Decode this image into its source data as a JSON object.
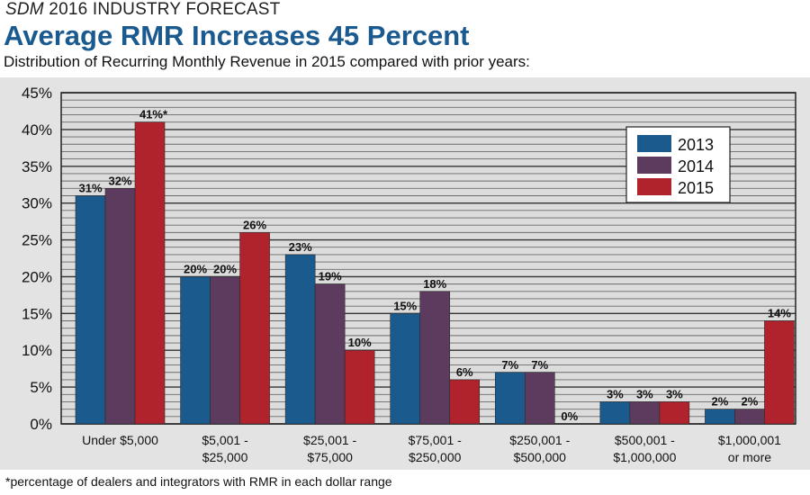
{
  "header": {
    "kicker_brand": "SDM",
    "kicker_rest": " 2016 INDUSTRY FORECAST",
    "title": "Average RMR Increases 45 Percent",
    "subtitle": "Distribution of Recurring Monthly Revenue in 2015 compared with prior years:"
  },
  "footnote": "*percentage of dealers and integrators with RMR in each dollar range",
  "chart_data": {
    "type": "bar",
    "categories": [
      [
        "Under $5,000"
      ],
      [
        "$5,001 -",
        "$25,000"
      ],
      [
        "$25,001 -",
        "$75,000"
      ],
      [
        "$75,001 -",
        "$250,000"
      ],
      [
        "$250,001 -",
        "$500,000"
      ],
      [
        "$500,001 -",
        "$1,000,000"
      ],
      [
        "$1,000,001",
        "or more"
      ]
    ],
    "series": [
      {
        "name": "2013",
        "color": "#1b5a8c",
        "values": [
          31,
          20,
          23,
          15,
          7,
          3,
          2
        ],
        "labels": [
          "31%",
          "20%",
          "23%",
          "15%",
          "7%",
          "3%",
          "2%"
        ]
      },
      {
        "name": "2014",
        "color": "#5c3b5e",
        "values": [
          32,
          20,
          19,
          18,
          7,
          3,
          2
        ],
        "labels": [
          "32%",
          "20%",
          "19%",
          "18%",
          "7%",
          "3%",
          "2%"
        ]
      },
      {
        "name": "2015",
        "color": "#b0222c",
        "values": [
          41,
          26,
          10,
          6,
          0,
          3,
          14
        ],
        "labels": [
          "41%*",
          "26%",
          "10%",
          "6%",
          "0%",
          "3%",
          "14%"
        ]
      }
    ],
    "ylim": [
      0,
      45
    ],
    "yticks": [
      0,
      5,
      10,
      15,
      20,
      25,
      30,
      35,
      40,
      45
    ],
    "ytick_labels": [
      "0%",
      "5%",
      "10%",
      "15%",
      "20%",
      "25%",
      "30%",
      "35%",
      "40%",
      "45%"
    ],
    "grid": true,
    "legend_position": "top-right"
  }
}
